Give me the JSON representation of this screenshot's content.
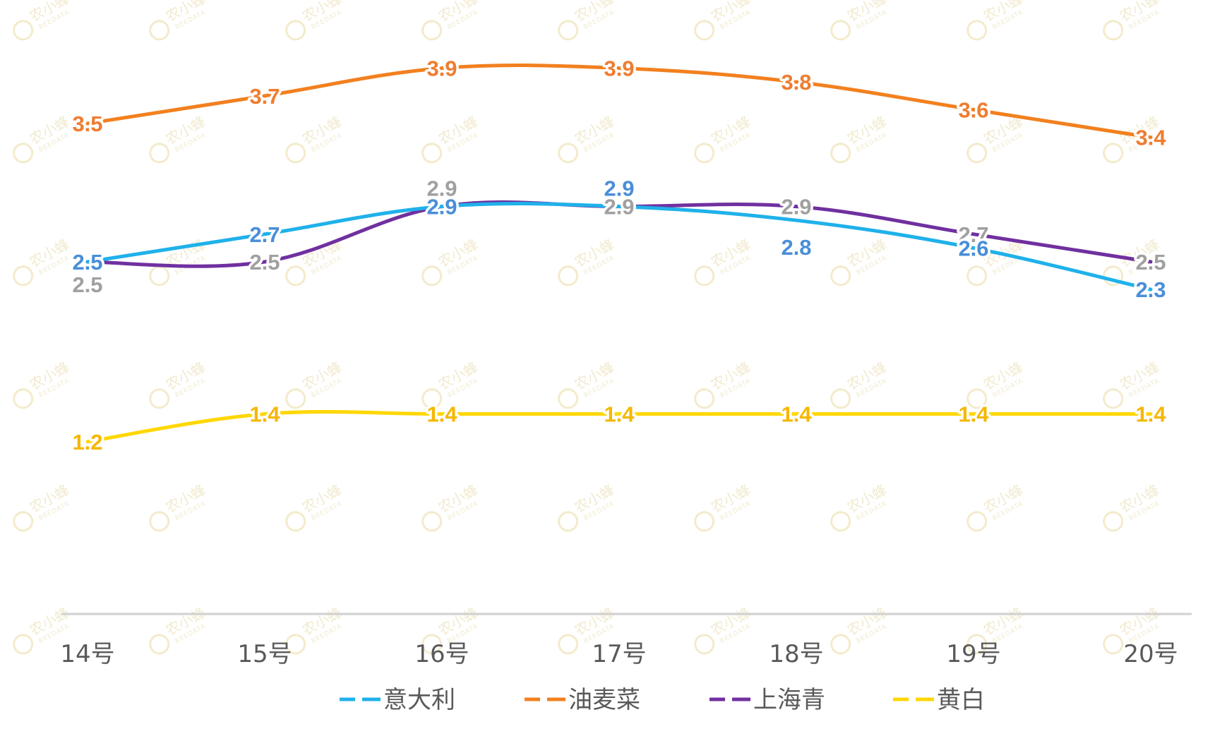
{
  "watermark": {
    "name": "农小蜂",
    "sub": "BEEDATA"
  },
  "chart_data": {
    "type": "line",
    "title": "",
    "xlabel": "",
    "ylabel": "",
    "categories": [
      "14号",
      "15号",
      "16号",
      "17号",
      "18号",
      "19号",
      "20号"
    ],
    "ylim": [
      0,
      4.2
    ],
    "grid": false,
    "legend": "bottom",
    "series": [
      {
        "name": "意大利",
        "color": "#1fb1ea",
        "label_color": "#4a8ed8",
        "values": [
          2.5,
          2.7,
          2.9,
          2.9,
          2.8,
          2.6,
          2.3
        ]
      },
      {
        "name": "油麦菜",
        "color": "#f2801f",
        "label_color": "#ee7d31",
        "values": [
          3.5,
          3.7,
          3.9,
          3.9,
          3.8,
          3.6,
          3.4
        ]
      },
      {
        "name": "上海青",
        "color": "#7030a0",
        "label_color": "#a0a0a0",
        "values": [
          2.5,
          2.5,
          2.9,
          2.9,
          2.9,
          2.7,
          2.5
        ]
      },
      {
        "name": "黄白",
        "color": "#ffd700",
        "label_color": "#f5b700",
        "values": [
          1.2,
          1.4,
          1.4,
          1.4,
          1.4,
          1.4,
          1.4
        ]
      }
    ]
  }
}
